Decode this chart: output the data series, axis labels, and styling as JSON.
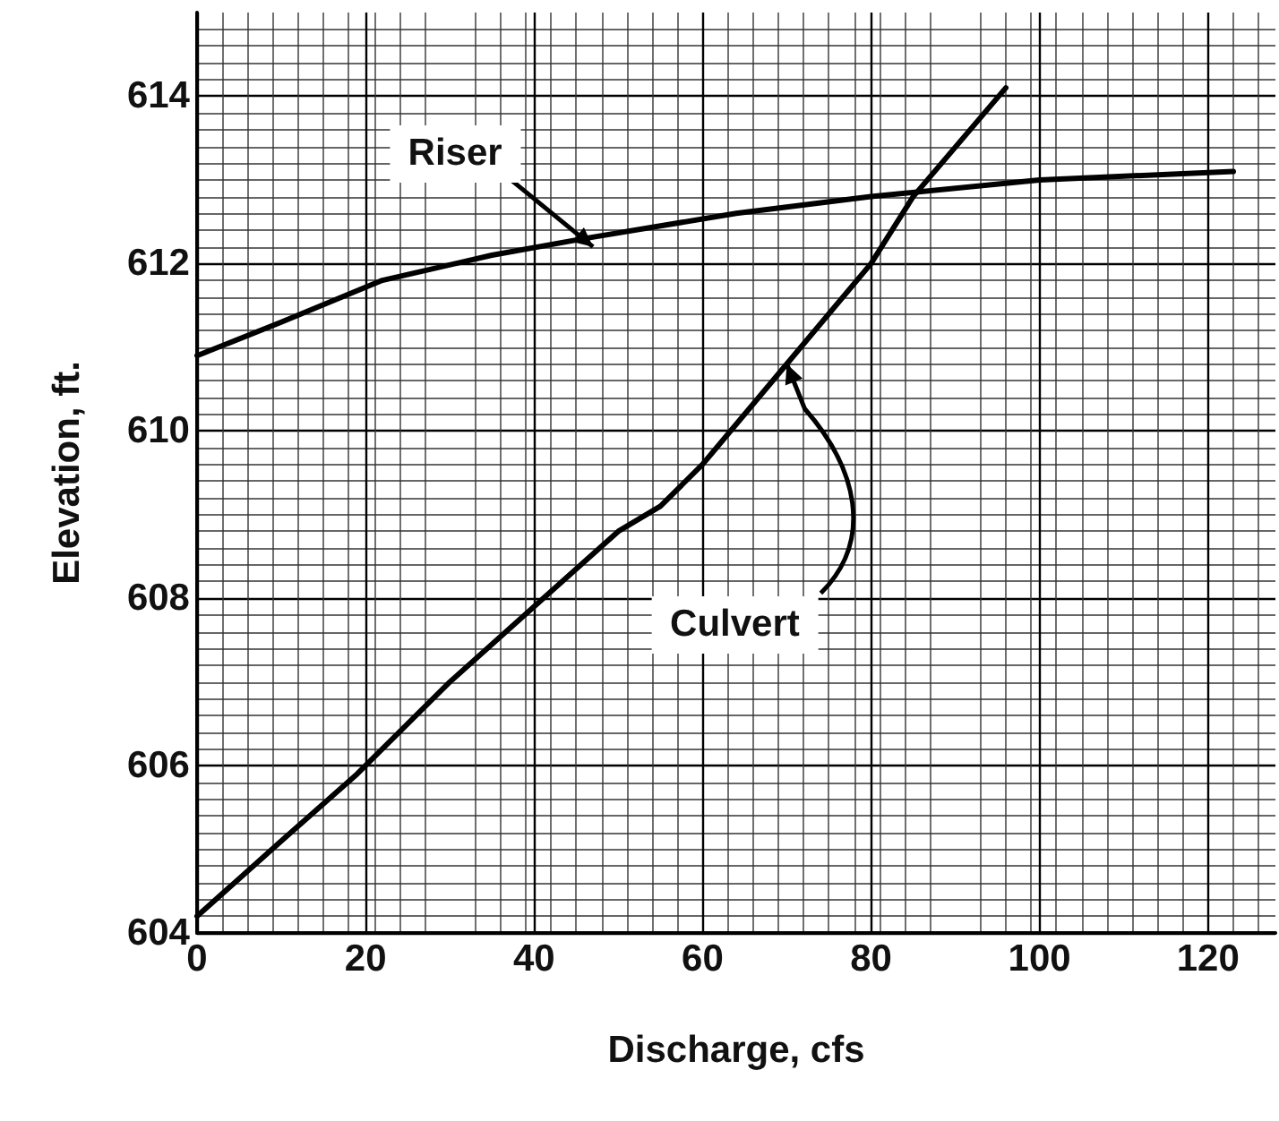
{
  "chart_data": {
    "type": "line",
    "xlabel": "Discharge, cfs",
    "ylabel": "Elevation, ft.",
    "xlim": [
      0,
      128
    ],
    "xticks": [
      0,
      20,
      40,
      60,
      80,
      100,
      120
    ],
    "ylim": [
      604,
      615
    ],
    "yticks": [
      604,
      606,
      608,
      610,
      612,
      614
    ],
    "grid": true,
    "marker": "none",
    "line_style": "solid",
    "series": [
      {
        "color": "#000000",
        "x": [
          0,
          10,
          22,
          35,
          46,
          64,
          80,
          100,
          123
        ],
        "values": [
          610.9,
          611.3,
          611.8,
          612.1,
          612.3,
          612.6,
          612.8,
          613.0,
          613.1
        ]
      },
      {
        "color": "#000000",
        "x": [
          0,
          10,
          19,
          30,
          40,
          50,
          55,
          60,
          70,
          80,
          85,
          96
        ],
        "values": [
          604.2,
          605.1,
          605.9,
          607.0,
          607.9,
          608.8,
          609.1,
          609.6,
          610.8,
          612.0,
          612.8,
          614.1
        ]
      }
    ],
    "annotations": [
      {
        "text": "Riser",
        "x": 47,
        "y": 612.2
      },
      {
        "text": "Culvert",
        "x": 70,
        "y": 610.8
      }
    ]
  }
}
